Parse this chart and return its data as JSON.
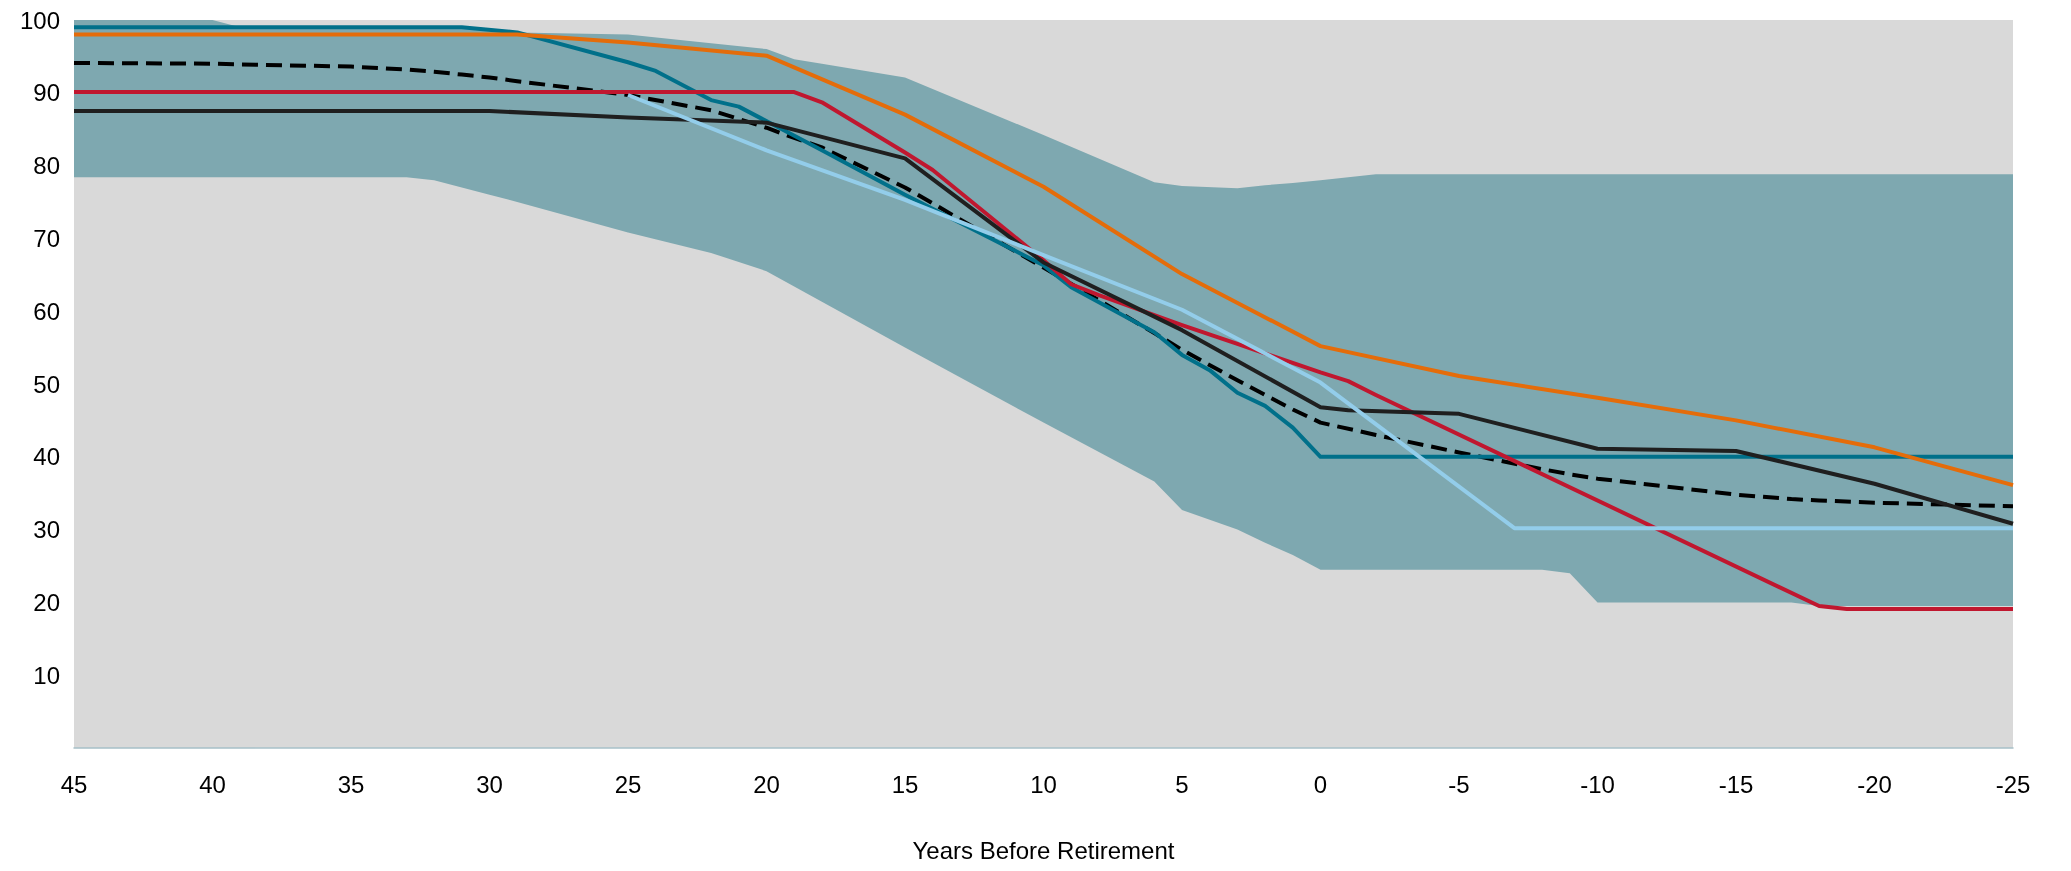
{
  "chart_data": {
    "type": "line",
    "xlabel": "Years Before Retirement",
    "xlim": [
      45,
      -25
    ],
    "xticks": [
      45,
      40,
      35,
      30,
      25,
      20,
      15,
      10,
      5,
      0,
      -5,
      -10,
      -15,
      -20,
      -25
    ],
    "ylim": [
      0,
      100
    ],
    "yticks": [
      10,
      20,
      30,
      40,
      50,
      60,
      70,
      80,
      90,
      100
    ],
    "grid": false,
    "marker": "none",
    "line_style": "solid",
    "series": [
      {
        "color": "#000000",
        "line_style": "dashed",
        "x": [
          45,
          40,
          39,
          35,
          33,
          32,
          31,
          30,
          29,
          25,
          22,
          20,
          19,
          18,
          15,
          10,
          6,
          5,
          3,
          2,
          1,
          0,
          -2,
          -5,
          -8,
          -9,
          -10,
          -15,
          -17,
          -18,
          -20,
          -25
        ],
        "values": [
          94.1,
          94,
          93.9,
          93.6,
          93.2,
          92.9,
          92.5,
          92.1,
          91.6,
          89.7,
          87.6,
          85.2,
          83.8,
          82.5,
          77,
          66,
          57,
          54.7,
          50.5,
          48.5,
          46.5,
          44.7,
          43,
          40.6,
          38.3,
          37.6,
          37,
          34.8,
          34.2,
          34,
          33.7,
          33.2
        ],
        "upper": [
          100,
          100,
          99,
          99,
          99,
          99,
          99,
          98.5,
          98.3,
          98,
          96.8,
          96,
          94.6,
          94,
          92.1,
          84.2,
          77.7,
          77.2,
          76.9,
          77.3,
          77.6,
          78,
          78.8,
          78.8,
          78.8,
          78.8,
          78.8,
          78.8,
          78.8,
          78.8,
          78.8,
          78.8
        ],
        "lower": [
          78.4,
          78.4,
          78.4,
          78.4,
          78.4,
          78,
          77,
          76,
          75,
          70.8,
          68,
          65.5,
          63.4,
          61.3,
          55,
          44.7,
          36.6,
          32.7,
          30,
          28.2,
          26.5,
          24.5,
          24.5,
          24.5,
          24.5,
          24,
          20,
          20,
          20,
          19.5,
          19.5,
          19.5
        ]
      },
      {
        "color": "#00708a",
        "x": [
          45,
          31,
          29,
          25,
          24,
          22,
          21,
          18,
          15,
          10,
          9,
          6,
          5,
          4,
          3,
          2,
          1,
          0,
          -25
        ],
        "values": [
          99,
          99,
          98.3,
          94.2,
          93,
          89,
          88.1,
          82.1,
          76,
          66.3,
          63.3,
          57.1,
          54,
          51.9,
          48.8,
          47,
          44,
          40,
          40
        ]
      },
      {
        "color": "#e46c0a",
        "x": [
          45,
          29,
          25,
          20,
          15,
          10,
          5,
          0,
          -5,
          -10,
          -15,
          -20,
          -25
        ],
        "values": [
          98,
          98,
          96.9,
          95.1,
          87,
          77.1,
          65.1,
          55.2,
          51.1,
          48.1,
          45,
          41.3,
          36.1
        ]
      },
      {
        "color": "#c0172f",
        "x": [
          45,
          19,
          18,
          15,
          14,
          10,
          9,
          8,
          5,
          3,
          0,
          -1,
          -2,
          -18,
          -19,
          -25
        ],
        "values": [
          90.1,
          90.1,
          88.7,
          81.8,
          79.4,
          67,
          63.7,
          62.2,
          58.1,
          55.5,
          51.6,
          50.4,
          48.5,
          19.5,
          19.1,
          19.1
        ]
      },
      {
        "color": "#1f1f1f",
        "x": [
          45,
          30,
          25,
          20,
          15,
          10,
          5,
          0,
          -1,
          -5,
          -10,
          -15,
          -20,
          -25
        ],
        "values": [
          87.5,
          87.5,
          86.6,
          85.9,
          81,
          66.7,
          57.4,
          46.8,
          46.4,
          45.9,
          41.1,
          40.8,
          36.3,
          30.8
        ]
      },
      {
        "color": "#93cdea",
        "x": [
          25,
          20,
          15,
          10,
          5,
          0,
          -7,
          -25
        ],
        "values": [
          89.7,
          82.1,
          75.3,
          67.7,
          60.2,
          50.2,
          30.2,
          30.2
        ]
      }
    ]
  }
}
